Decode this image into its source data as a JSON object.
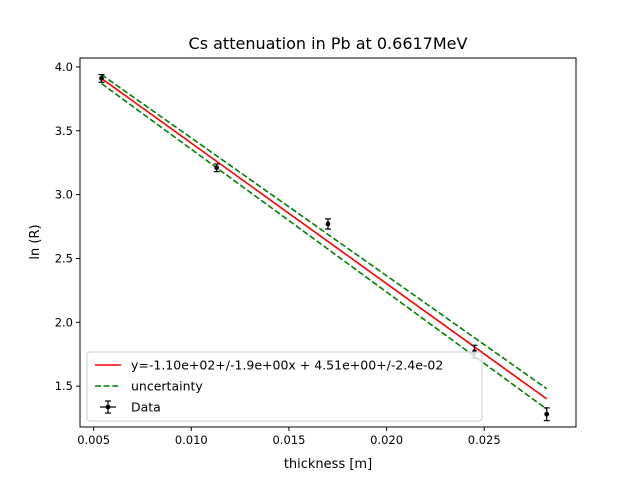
{
  "chart_data": {
    "type": "scatter",
    "title": "Cs attenuation in Pb at 0.6617MeV",
    "xlabel": "thickness [m]",
    "ylabel": "ln (R)",
    "xlim": [
      0.0043,
      0.0297
    ],
    "ylim": [
      1.18,
      4.07
    ],
    "xticks": [
      0.005,
      0.01,
      0.015,
      0.02,
      0.025
    ],
    "xtick_labels": [
      "0.005",
      "0.010",
      "0.015",
      "0.020",
      "0.025"
    ],
    "yticks": [
      1.5,
      2.0,
      2.5,
      3.0,
      3.5,
      4.0
    ],
    "ytick_labels": [
      "1.5",
      "2.0",
      "2.5",
      "3.0",
      "3.5",
      "4.0"
    ],
    "grid": false,
    "legend_position": "lower-left",
    "series": [
      {
        "name": "y=-1.10e+02+/-1.9e+00x + 4.51e+00+/-2.4e-02",
        "kind": "line",
        "color": "#ff0000",
        "style": "solid",
        "x": [
          0.0054,
          0.0282
        ],
        "y": [
          3.91,
          1.4
        ]
      },
      {
        "name": "uncertainty",
        "kind": "line",
        "color": "#008000",
        "style": "dashed",
        "x": [
          0.0054,
          0.0282
        ],
        "y": [
          3.94,
          1.48
        ]
      },
      {
        "name": "",
        "kind": "line",
        "color": "#008000",
        "style": "dashed",
        "x": [
          0.0054,
          0.0282
        ],
        "y": [
          3.87,
          1.32
        ]
      },
      {
        "name": "Data",
        "kind": "errorbar",
        "color": "#000000",
        "x": [
          0.0054,
          0.0113,
          0.017,
          0.0245,
          0.0282
        ],
        "y": [
          3.91,
          3.21,
          2.77,
          1.77,
          1.28
        ],
        "yerr": [
          0.03,
          0.03,
          0.04,
          0.05,
          0.05
        ]
      }
    ]
  }
}
